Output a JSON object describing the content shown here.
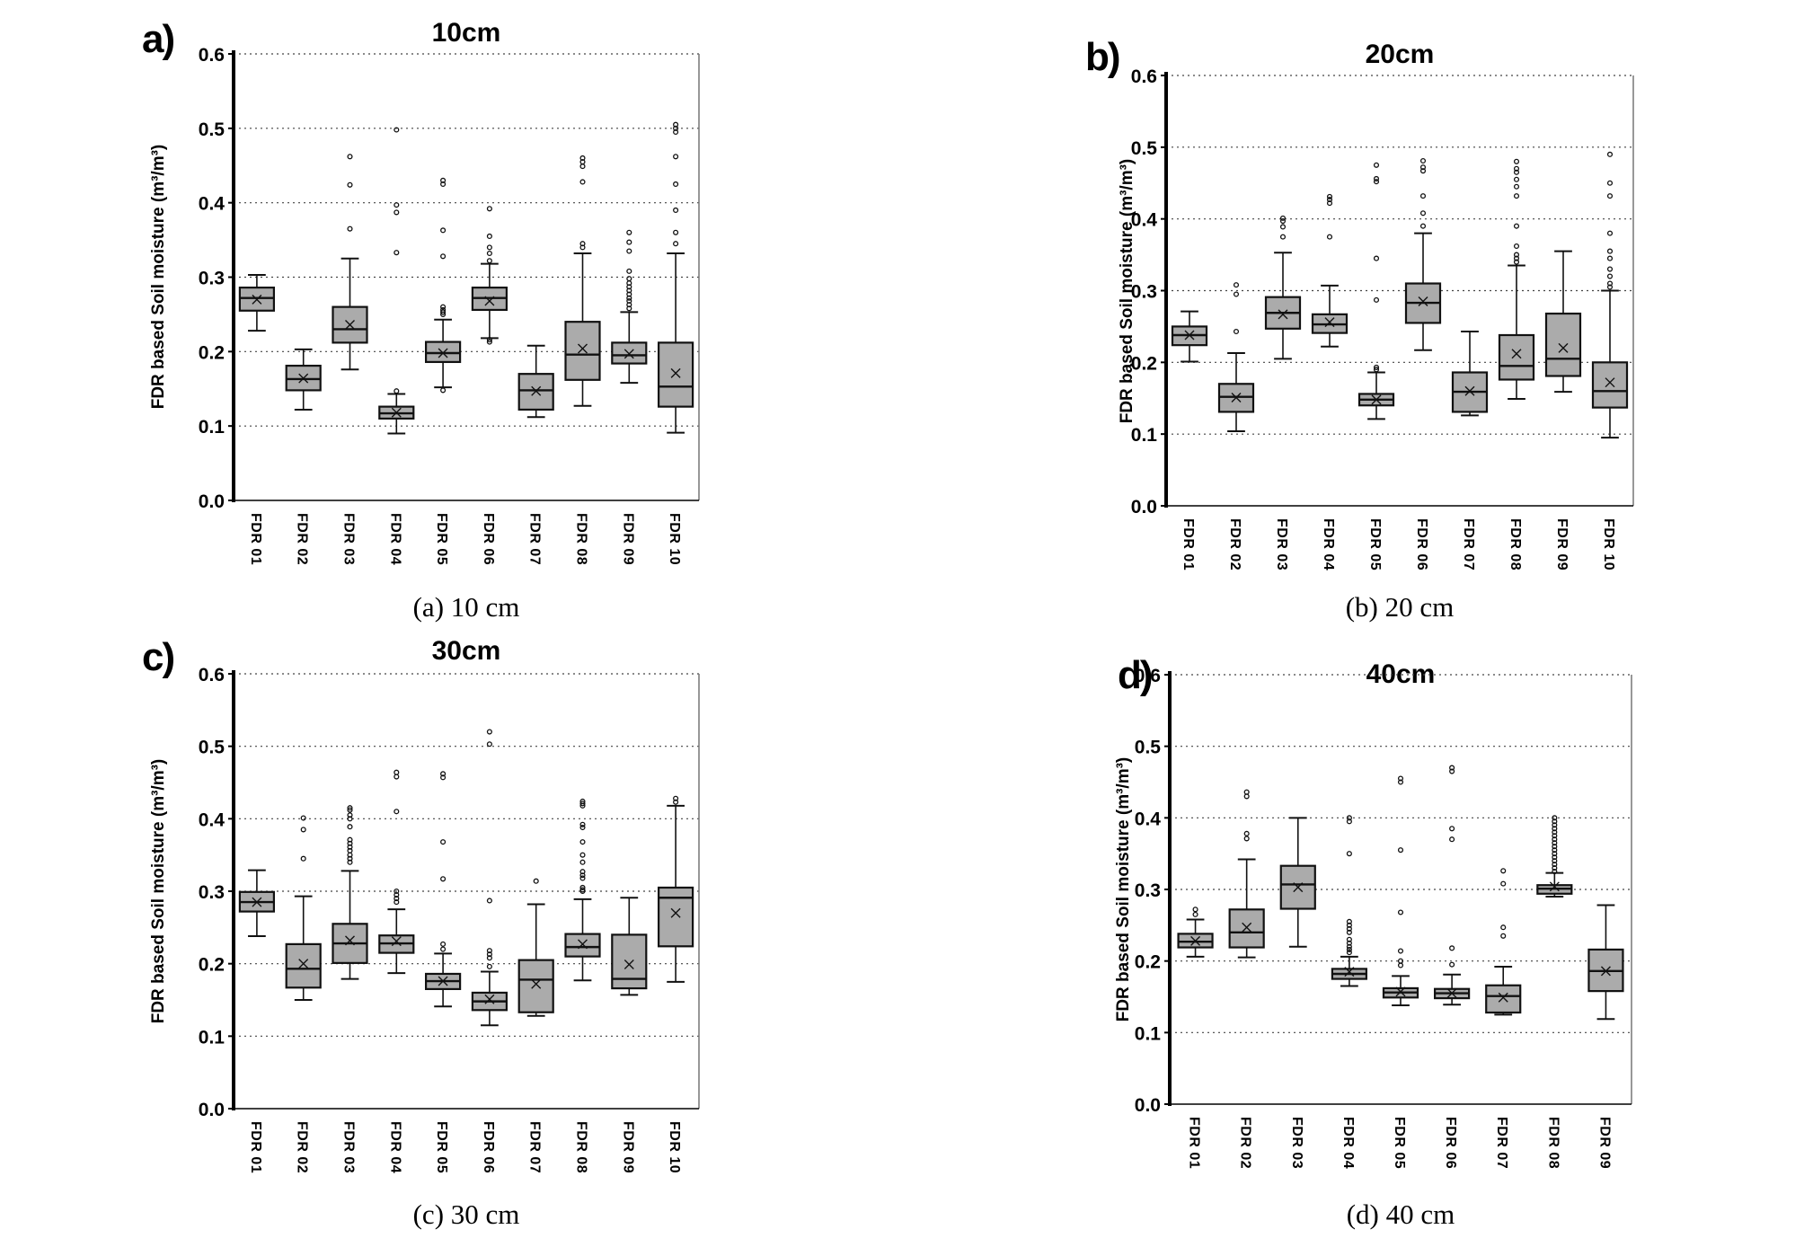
{
  "figure": {
    "background": "#ffffff",
    "y_axis_label": "FDR based Soil moisture (m³/m³)",
    "ytick_labels": [
      "0.0",
      "0.1",
      "0.2",
      "0.3",
      "0.4",
      "0.5",
      "0.6"
    ]
  },
  "colors": {
    "box_fill": "#ababab",
    "box_stroke": "#111111",
    "grid": "#444444",
    "axis": "#000000",
    "border": "#777777"
  },
  "chart_data": [
    {
      "type": "box",
      "panel_label": "a)",
      "title": "10cm",
      "caption": "(a) 10 cm",
      "ylabel": "FDR based Soil moisture (m³/m³)",
      "xlabel": "",
      "ylim": [
        0.0,
        0.6
      ],
      "ytick_labels": [
        "0.0",
        "0.1",
        "0.2",
        "0.3",
        "0.4",
        "0.5",
        "0.6"
      ],
      "grid": "horizontal-dashed",
      "categories": [
        "FDR 01",
        "FDR 02",
        "FDR 03",
        "FDR 04",
        "FDR 05",
        "FDR 06",
        "FDR 07",
        "FDR 08",
        "FDR 09",
        "FDR 10"
      ],
      "boxes": [
        {
          "label": "FDR 01",
          "whisker_low": 0.228,
          "q1": 0.255,
          "median": 0.272,
          "q3": 0.286,
          "whisker_high": 0.303,
          "mean": 0.27,
          "outliers": []
        },
        {
          "label": "FDR 02",
          "whisker_low": 0.122,
          "q1": 0.148,
          "median": 0.163,
          "q3": 0.181,
          "whisker_high": 0.203,
          "mean": 0.164,
          "outliers": []
        },
        {
          "label": "FDR 03",
          "whisker_low": 0.176,
          "q1": 0.212,
          "median": 0.23,
          "q3": 0.26,
          "whisker_high": 0.325,
          "mean": 0.236,
          "outliers": [
            0.365,
            0.424,
            0.462
          ]
        },
        {
          "label": "FDR 04",
          "whisker_low": 0.09,
          "q1": 0.11,
          "median": 0.117,
          "q3": 0.126,
          "whisker_high": 0.143,
          "mean": 0.118,
          "outliers": [
            0.147,
            0.333,
            0.387,
            0.397,
            0.498
          ]
        },
        {
          "label": "FDR 05",
          "whisker_low": 0.152,
          "q1": 0.186,
          "median": 0.198,
          "q3": 0.213,
          "whisker_high": 0.243,
          "mean": 0.198,
          "outliers": [
            0.148,
            0.25,
            0.253,
            0.256,
            0.26,
            0.328,
            0.363,
            0.425,
            0.43
          ]
        },
        {
          "label": "FDR 06",
          "whisker_low": 0.218,
          "q1": 0.256,
          "median": 0.272,
          "q3": 0.286,
          "whisker_high": 0.318,
          "mean": 0.268,
          "outliers": [
            0.213,
            0.216,
            0.322,
            0.332,
            0.34,
            0.355,
            0.392
          ]
        },
        {
          "label": "FDR 07",
          "whisker_low": 0.112,
          "q1": 0.122,
          "median": 0.148,
          "q3": 0.17,
          "whisker_high": 0.208,
          "mean": 0.147,
          "outliers": []
        },
        {
          "label": "FDR 08",
          "whisker_low": 0.127,
          "q1": 0.162,
          "median": 0.196,
          "q3": 0.24,
          "whisker_high": 0.332,
          "mean": 0.204,
          "outliers": [
            0.34,
            0.345,
            0.428,
            0.449,
            0.455,
            0.46
          ]
        },
        {
          "label": "FDR 09",
          "whisker_low": 0.158,
          "q1": 0.184,
          "median": 0.195,
          "q3": 0.212,
          "whisker_high": 0.253,
          "mean": 0.197,
          "outliers": [
            0.258,
            0.263,
            0.268,
            0.272,
            0.277,
            0.282,
            0.287,
            0.292,
            0.298,
            0.308,
            0.335,
            0.347,
            0.36
          ]
        },
        {
          "label": "FDR 10",
          "whisker_low": 0.091,
          "q1": 0.126,
          "median": 0.153,
          "q3": 0.212,
          "whisker_high": 0.332,
          "mean": 0.171,
          "outliers": [
            0.345,
            0.36,
            0.39,
            0.425,
            0.462,
            0.495,
            0.5,
            0.505
          ]
        }
      ]
    },
    {
      "type": "box",
      "panel_label": "b)",
      "title": "20cm",
      "caption": "(b) 20 cm",
      "ylabel": "FDR based Soil moisture (m³/m³)",
      "xlabel": "",
      "ylim": [
        0.0,
        0.6
      ],
      "ytick_labels": [
        "0.0",
        "0.1",
        "0.2",
        "0.3",
        "0.4",
        "0.5",
        "0.6"
      ],
      "grid": "horizontal-dashed",
      "categories": [
        "FDR 01",
        "FDR 02",
        "FDR 03",
        "FDR 04",
        "FDR 05",
        "FDR 06",
        "FDR 07",
        "FDR 08",
        "FDR 09",
        "FDR 10"
      ],
      "boxes": [
        {
          "label": "FDR 01",
          "whisker_low": 0.201,
          "q1": 0.224,
          "median": 0.238,
          "q3": 0.25,
          "whisker_high": 0.271,
          "mean": 0.238,
          "outliers": []
        },
        {
          "label": "FDR 02",
          "whisker_low": 0.104,
          "q1": 0.131,
          "median": 0.152,
          "q3": 0.17,
          "whisker_high": 0.213,
          "mean": 0.151,
          "outliers": [
            0.243,
            0.295,
            0.308
          ]
        },
        {
          "label": "FDR 03",
          "whisker_low": 0.205,
          "q1": 0.247,
          "median": 0.269,
          "q3": 0.291,
          "whisker_high": 0.353,
          "mean": 0.267,
          "outliers": [
            0.375,
            0.389,
            0.397,
            0.401
          ]
        },
        {
          "label": "FDR 04",
          "whisker_low": 0.222,
          "q1": 0.241,
          "median": 0.253,
          "q3": 0.267,
          "whisker_high": 0.307,
          "mean": 0.256,
          "outliers": [
            0.375,
            0.422,
            0.427,
            0.431
          ]
        },
        {
          "label": "FDR 05",
          "whisker_low": 0.121,
          "q1": 0.14,
          "median": 0.148,
          "q3": 0.156,
          "whisker_high": 0.186,
          "mean": 0.148,
          "outliers": [
            0.19,
            0.193,
            0.287,
            0.345,
            0.452,
            0.456,
            0.475
          ]
        },
        {
          "label": "FDR 06",
          "whisker_low": 0.217,
          "q1": 0.255,
          "median": 0.283,
          "q3": 0.31,
          "whisker_high": 0.38,
          "mean": 0.285,
          "outliers": [
            0.39,
            0.408,
            0.432,
            0.467,
            0.472,
            0.481
          ]
        },
        {
          "label": "FDR 07",
          "whisker_low": 0.126,
          "q1": 0.131,
          "median": 0.159,
          "q3": 0.186,
          "whisker_high": 0.243,
          "mean": 0.16,
          "outliers": []
        },
        {
          "label": "FDR 08",
          "whisker_low": 0.149,
          "q1": 0.176,
          "median": 0.195,
          "q3": 0.238,
          "whisker_high": 0.335,
          "mean": 0.212,
          "outliers": [
            0.34,
            0.345,
            0.35,
            0.362,
            0.39,
            0.432,
            0.445,
            0.455,
            0.465,
            0.47,
            0.48
          ]
        },
        {
          "label": "FDR 09",
          "whisker_low": 0.159,
          "q1": 0.181,
          "median": 0.205,
          "q3": 0.268,
          "whisker_high": 0.355,
          "mean": 0.22,
          "outliers": []
        },
        {
          "label": "FDR 10",
          "whisker_low": 0.095,
          "q1": 0.137,
          "median": 0.16,
          "q3": 0.2,
          "whisker_high": 0.3,
          "mean": 0.172,
          "outliers": [
            0.305,
            0.31,
            0.32,
            0.33,
            0.345,
            0.355,
            0.38,
            0.432,
            0.45,
            0.49
          ]
        }
      ]
    },
    {
      "type": "box",
      "panel_label": "c)",
      "title": "30cm",
      "caption": "(c) 30 cm",
      "ylabel": "FDR based Soil moisture (m³/m³)",
      "xlabel": "",
      "ylim": [
        0.0,
        0.6
      ],
      "ytick_labels": [
        "0.0",
        "0.1",
        "0.2",
        "0.3",
        "0.4",
        "0.5",
        "0.6"
      ],
      "grid": "horizontal-dashed",
      "categories": [
        "FDR 01",
        "FDR 02",
        "FDR 03",
        "FDR 04",
        "FDR 05",
        "FDR 06",
        "FDR 07",
        "FDR 08",
        "FDR 09",
        "FDR 10"
      ],
      "boxes": [
        {
          "label": "FDR 01",
          "whisker_low": 0.238,
          "q1": 0.272,
          "median": 0.285,
          "q3": 0.299,
          "whisker_high": 0.329,
          "mean": 0.285,
          "outliers": []
        },
        {
          "label": "FDR 02",
          "whisker_low": 0.15,
          "q1": 0.167,
          "median": 0.193,
          "q3": 0.227,
          "whisker_high": 0.293,
          "mean": 0.2,
          "outliers": [
            0.345,
            0.385,
            0.401
          ]
        },
        {
          "label": "FDR 03",
          "whisker_low": 0.179,
          "q1": 0.201,
          "median": 0.228,
          "q3": 0.255,
          "whisker_high": 0.328,
          "mean": 0.232,
          "outliers": [
            0.34,
            0.345,
            0.35,
            0.356,
            0.361,
            0.366,
            0.371,
            0.389,
            0.4,
            0.405,
            0.412,
            0.415
          ]
        },
        {
          "label": "FDR 04",
          "whisker_low": 0.187,
          "q1": 0.215,
          "median": 0.228,
          "q3": 0.239,
          "whisker_high": 0.275,
          "mean": 0.231,
          "outliers": [
            0.285,
            0.29,
            0.295,
            0.3,
            0.41,
            0.458,
            0.464
          ]
        },
        {
          "label": "FDR 05",
          "whisker_low": 0.141,
          "q1": 0.165,
          "median": 0.176,
          "q3": 0.186,
          "whisker_high": 0.214,
          "mean": 0.176,
          "outliers": [
            0.22,
            0.227,
            0.317,
            0.368,
            0.457,
            0.462
          ]
        },
        {
          "label": "FDR 06",
          "whisker_low": 0.115,
          "q1": 0.136,
          "median": 0.148,
          "q3": 0.16,
          "whisker_high": 0.189,
          "mean": 0.151,
          "outliers": [
            0.196,
            0.208,
            0.213,
            0.218,
            0.287,
            0.503,
            0.52
          ]
        },
        {
          "label": "FDR 07",
          "whisker_low": 0.128,
          "q1": 0.133,
          "median": 0.178,
          "q3": 0.205,
          "whisker_high": 0.282,
          "mean": 0.172,
          "outliers": [
            0.314
          ]
        },
        {
          "label": "FDR 08",
          "whisker_low": 0.177,
          "q1": 0.21,
          "median": 0.223,
          "q3": 0.241,
          "whisker_high": 0.289,
          "mean": 0.227,
          "outliers": [
            0.3,
            0.302,
            0.305,
            0.318,
            0.322,
            0.327,
            0.34,
            0.35,
            0.368,
            0.388,
            0.392,
            0.418,
            0.421,
            0.424
          ]
        },
        {
          "label": "FDR 09",
          "whisker_low": 0.157,
          "q1": 0.166,
          "median": 0.179,
          "q3": 0.24,
          "whisker_high": 0.291,
          "mean": 0.199,
          "outliers": []
        },
        {
          "label": "FDR 10",
          "whisker_low": 0.175,
          "q1": 0.224,
          "median": 0.291,
          "q3": 0.305,
          "whisker_high": 0.418,
          "mean": 0.27,
          "outliers": [
            0.423,
            0.428
          ]
        }
      ]
    },
    {
      "type": "box",
      "panel_label": "d)",
      "title": "40cm",
      "caption": "(d) 40 cm",
      "ylabel": "FDR based Soil moisture (m³/m³)",
      "xlabel": "",
      "ylim": [
        0.0,
        0.6
      ],
      "ytick_labels": [
        "0.0",
        "0.1",
        "0.2",
        "0.3",
        "0.4",
        "0.5",
        "0.6"
      ],
      "grid": "horizontal-dashed",
      "categories": [
        "FDR 01",
        "FDR 02",
        "FDR 03",
        "FDR 04",
        "FDR 05",
        "FDR 06",
        "FDR 07",
        "FDR 08",
        "FDR 09"
      ],
      "boxes": [
        {
          "label": "FDR 01",
          "whisker_low": 0.206,
          "q1": 0.219,
          "median": 0.227,
          "q3": 0.238,
          "whisker_high": 0.258,
          "mean": 0.228,
          "outliers": [
            0.265,
            0.272
          ]
        },
        {
          "label": "FDR 02",
          "whisker_low": 0.205,
          "q1": 0.219,
          "median": 0.24,
          "q3": 0.272,
          "whisker_high": 0.342,
          "mean": 0.247,
          "outliers": [
            0.371,
            0.378,
            0.43,
            0.436
          ]
        },
        {
          "label": "FDR 03",
          "whisker_low": 0.22,
          "q1": 0.273,
          "median": 0.307,
          "q3": 0.333,
          "whisker_high": 0.4,
          "mean": 0.303,
          "outliers": []
        },
        {
          "label": "FDR 04",
          "whisker_low": 0.165,
          "q1": 0.175,
          "median": 0.182,
          "q3": 0.189,
          "whisker_high": 0.206,
          "mean": 0.185,
          "outliers": [
            0.212,
            0.216,
            0.22,
            0.225,
            0.23,
            0.24,
            0.245,
            0.25,
            0.255,
            0.35,
            0.395,
            0.4
          ]
        },
        {
          "label": "FDR 05",
          "whisker_low": 0.138,
          "q1": 0.149,
          "median": 0.156,
          "q3": 0.162,
          "whisker_high": 0.179,
          "mean": 0.157,
          "outliers": [
            0.194,
            0.2,
            0.214,
            0.268,
            0.355,
            0.45,
            0.455
          ]
        },
        {
          "label": "FDR 06",
          "whisker_low": 0.139,
          "q1": 0.148,
          "median": 0.155,
          "q3": 0.161,
          "whisker_high": 0.181,
          "mean": 0.155,
          "outliers": [
            0.195,
            0.218,
            0.37,
            0.385,
            0.465,
            0.47
          ]
        },
        {
          "label": "FDR 07",
          "whisker_low": 0.125,
          "q1": 0.128,
          "median": 0.151,
          "q3": 0.166,
          "whisker_high": 0.192,
          "mean": 0.149,
          "outliers": [
            0.235,
            0.247,
            0.308,
            0.326
          ]
        },
        {
          "label": "FDR 08",
          "whisker_low": 0.29,
          "q1": 0.294,
          "median": 0.301,
          "q3": 0.306,
          "whisker_high": 0.323,
          "mean": 0.304,
          "outliers": [
            0.325,
            0.33,
            0.335,
            0.34,
            0.345,
            0.35,
            0.355,
            0.36,
            0.365,
            0.37,
            0.375,
            0.38,
            0.385,
            0.39,
            0.395,
            0.4
          ]
        },
        {
          "label": "FDR 09",
          "whisker_low": 0.119,
          "q1": 0.158,
          "median": 0.186,
          "q3": 0.216,
          "whisker_high": 0.278,
          "mean": 0.186,
          "outliers": []
        }
      ]
    }
  ]
}
